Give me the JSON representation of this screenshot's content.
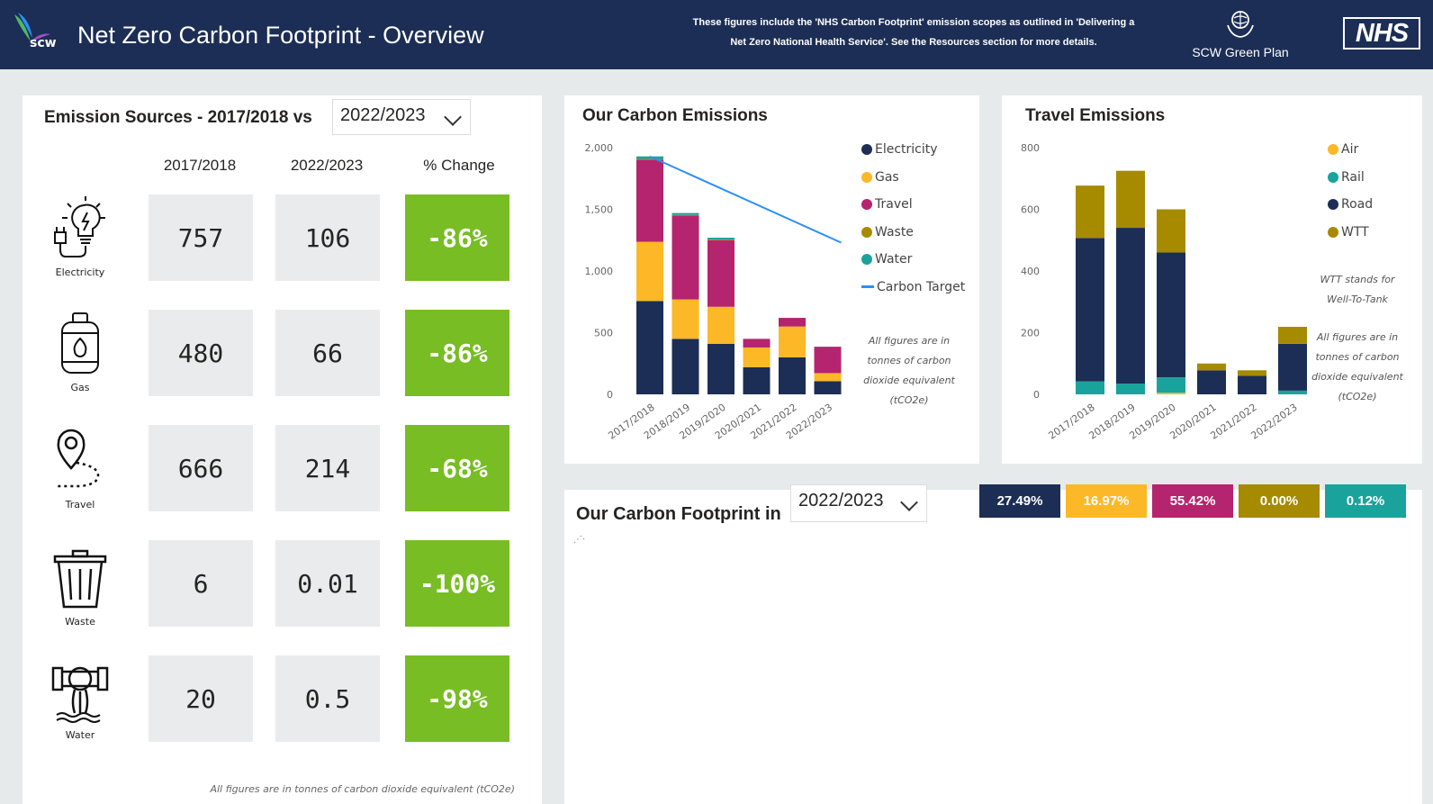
{
  "header": {
    "logo_text": "scw",
    "title": "Net Zero Carbon Footprint - Overview",
    "note_line1": "These figures include the 'NHS Carbon Footprint' emission scopes as outlined in 'Delivering a",
    "note_line2_pre": "Net Zero National Health Service'. See the ",
    "note_line2_bold": "Resources",
    "note_line2_post": " section for more details.",
    "green_plan_label": "SCW Green Plan",
    "nhs_logo": "NHS"
  },
  "emission_sources": {
    "title": "Emission Sources - 2017/2018 vs",
    "selected_year": "2022/2023",
    "col_base": "2017/2018",
    "col_compare": "2022/2023",
    "col_change": "% Change",
    "rows": [
      {
        "label": "Electricity",
        "icon": "electricity-icon",
        "base": "757",
        "compare": "106",
        "change": "-86%"
      },
      {
        "label": "Gas",
        "icon": "gas-cylinder-icon",
        "base": "480",
        "compare": "66",
        "change": "-86%"
      },
      {
        "label": "Travel",
        "icon": "map-pin-icon",
        "base": "666",
        "compare": "214",
        "change": "-68%"
      },
      {
        "label": "Waste",
        "icon": "trash-bin-icon",
        "base": "6",
        "compare": "0.01",
        "change": "-100%"
      },
      {
        "label": "Water",
        "icon": "water-pipe-icon",
        "base": "20",
        "compare": "0.5",
        "change": "-98%"
      }
    ],
    "footnote": "All figures are in tonnes of carbon dioxide equivalent (tCO2e)"
  },
  "carbon_emissions": {
    "title": "Our Carbon Emissions",
    "note": [
      "All figures are in",
      "tonnes of carbon",
      "dioxide equivalent",
      "(tCO2e)"
    ],
    "legend": [
      {
        "name": "Electricity",
        "color": "#1c2e55"
      },
      {
        "name": "Gas",
        "color": "#fdb827"
      },
      {
        "name": "Travel",
        "color": "#b5246e"
      },
      {
        "name": "Waste",
        "color": "#a68a00"
      },
      {
        "name": "Water",
        "color": "#1aa39c"
      },
      {
        "name": "Carbon Target",
        "color": "#2c8ef8"
      }
    ]
  },
  "travel_emissions": {
    "title": "Travel Emissions",
    "note1": [
      "WTT stands for",
      "Well-To-Tank"
    ],
    "note2": [
      "All figures are in",
      "tonnes of carbon",
      "dioxide equivalent",
      "(tCO2e)"
    ],
    "legend": [
      {
        "name": "Air",
        "color": "#fdb827"
      },
      {
        "name": "Rail",
        "color": "#1aa39c"
      },
      {
        "name": "Road",
        "color": "#1c2e55"
      },
      {
        "name": "WTT",
        "color": "#a68a00"
      }
    ]
  },
  "footprint": {
    "title": "Our Carbon Footprint in",
    "selected_year": "2022/2023",
    "shares": [
      {
        "value": "27.49%",
        "color": "#1c2e55"
      },
      {
        "value": "16.97%",
        "color": "#fdb827"
      },
      {
        "value": "55.42%",
        "color": "#b5246e"
      },
      {
        "value": "0.00%",
        "color": "#a68a00"
      },
      {
        "value": "0.12%",
        "color": "#1aa39c"
      }
    ]
  },
  "chart_data": [
    {
      "type": "bar",
      "stacked": true,
      "categories": [
        "2017/2018",
        "2018/2019",
        "2019/2020",
        "2020/2021",
        "2021/2022",
        "2022/2023"
      ],
      "series": [
        {
          "name": "Electricity",
          "values": [
            757,
            450,
            410,
            220,
            300,
            106
          ]
        },
        {
          "name": "Gas",
          "values": [
            480,
            320,
            300,
            160,
            250,
            66
          ]
        },
        {
          "name": "Travel",
          "values": [
            666,
            680,
            540,
            70,
            70,
            214
          ]
        },
        {
          "name": "Waste",
          "values": [
            6,
            5,
            5,
            0,
            0,
            0.01
          ]
        },
        {
          "name": "Water",
          "values": [
            20,
            15,
            15,
            0,
            0,
            0.5
          ]
        }
      ],
      "line": {
        "name": "Carbon Target",
        "x": [
          "2017/2018",
          "2022/2023"
        ],
        "values": [
          1929,
          1230
        ]
      },
      "ylim": [
        0,
        2000
      ],
      "yticks": [
        "2,000",
        "1,500",
        "1,000",
        "500",
        "0"
      ],
      "ytick_values": [
        2000,
        1500,
        1000,
        500,
        0
      ],
      "legend_position": "right"
    },
    {
      "type": "bar",
      "stacked": true,
      "categories": [
        "2017/2018",
        "2018/2019",
        "2019/2020",
        "2020/2021",
        "2021/2022",
        "2022/2023"
      ],
      "series": [
        {
          "name": "Air",
          "values": [
            0,
            0,
            5,
            0,
            0,
            0
          ]
        },
        {
          "name": "Rail",
          "values": [
            42,
            35,
            50,
            0,
            0,
            12
          ]
        },
        {
          "name": "Road",
          "values": [
            465,
            505,
            405,
            78,
            60,
            152
          ]
        },
        {
          "name": "WTT",
          "values": [
            170,
            185,
            140,
            22,
            18,
            55
          ]
        }
      ],
      "ylim": [
        0,
        800
      ],
      "yticks": [
        "800",
        "600",
        "400",
        "200",
        "0"
      ],
      "ytick_values": [
        800,
        600,
        400,
        200,
        0
      ],
      "legend_position": "right"
    }
  ]
}
